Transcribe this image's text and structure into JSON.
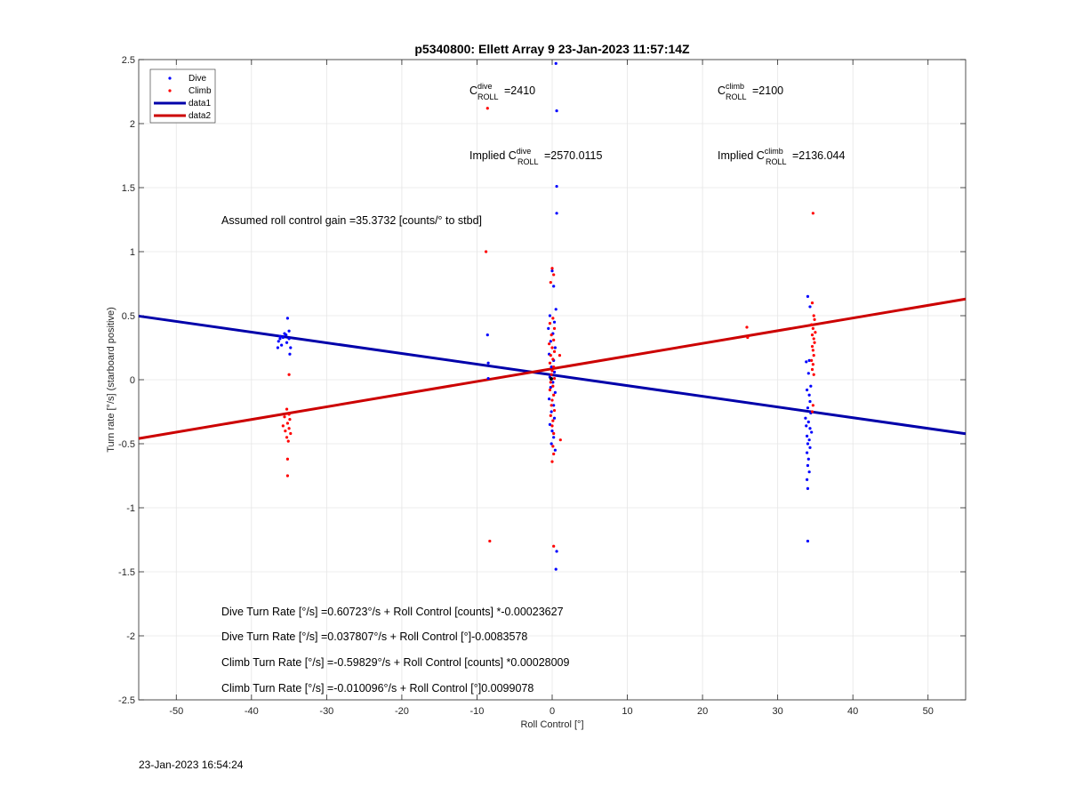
{
  "chart_data": {
    "type": "scatter",
    "title": "p5340800: Ellett Array 9 23-Jan-2023 11:57:14Z",
    "xlabel": "Roll Control [°]",
    "ylabel": "Turn rate [°/s] (starboard positive)",
    "xlim": [
      -55,
      55
    ],
    "ylim": [
      -2.5,
      2.5
    ],
    "xticks": [
      "-50",
      "-40",
      "-30",
      "-20",
      "-10",
      "0",
      "10",
      "20",
      "30",
      "40",
      "50"
    ],
    "yticks": [
      "-2.5",
      "-2",
      "-1.5",
      "-1",
      "-0.5",
      "0",
      "0.5",
      "1",
      "1.5",
      "2",
      "2.5"
    ],
    "grid": true,
    "legend_position": "top-left",
    "legend": [
      "Dive",
      "Climb",
      "data1",
      "data2"
    ],
    "colors": {
      "dive": "#0000ff",
      "climb": "#ff0000",
      "data1": "#0000aa",
      "data2": "#cc0000"
    },
    "series": [
      {
        "name": "Dive",
        "points": [
          [
            -35.2,
            0.48
          ],
          [
            -35.0,
            0.38
          ],
          [
            -35.4,
            0.35
          ],
          [
            -35.8,
            0.33
          ],
          [
            -36.2,
            0.32
          ],
          [
            -36.4,
            0.3
          ],
          [
            -35.6,
            0.36
          ],
          [
            -35.0,
            0.32
          ],
          [
            -36.0,
            0.27
          ],
          [
            -34.8,
            0.25
          ],
          [
            -36.5,
            0.25
          ],
          [
            -34.9,
            0.2
          ],
          [
            -36.2,
            0.34
          ],
          [
            -35.3,
            0.29
          ],
          [
            -8.6,
            0.35
          ],
          [
            -8.5,
            0.13
          ],
          [
            -8.5,
            0.01
          ],
          [
            0.5,
            2.47
          ],
          [
            0.6,
            2.1
          ],
          [
            0.6,
            1.51
          ],
          [
            0.6,
            1.3
          ],
          [
            0.0,
            0.85
          ],
          [
            0.2,
            0.73
          ],
          [
            0.5,
            0.55
          ],
          [
            -0.3,
            0.5
          ],
          [
            0.3,
            0.45
          ],
          [
            -0.5,
            0.4
          ],
          [
            0.1,
            0.36
          ],
          [
            -0.2,
            0.3
          ],
          [
            0.4,
            0.25
          ],
          [
            -0.4,
            0.2
          ],
          [
            0.2,
            0.15
          ],
          [
            -0.1,
            0.1
          ],
          [
            0.3,
            0.06
          ],
          [
            -0.3,
            0.02
          ],
          [
            0.1,
            -0.02
          ],
          [
            -0.2,
            -0.06
          ],
          [
            0.4,
            -0.1
          ],
          [
            -0.4,
            -0.15
          ],
          [
            0.2,
            -0.2
          ],
          [
            -0.1,
            -0.25
          ],
          [
            0.3,
            -0.3
          ],
          [
            -0.3,
            -0.35
          ],
          [
            0.0,
            -0.4
          ],
          [
            0.2,
            -0.45
          ],
          [
            -0.1,
            -0.5
          ],
          [
            0.4,
            -0.55
          ],
          [
            0.6,
            -1.34
          ],
          [
            0.5,
            -1.48
          ],
          [
            34.0,
            0.65
          ],
          [
            34.3,
            0.57
          ],
          [
            34.2,
            0.15
          ],
          [
            33.8,
            0.14
          ],
          [
            34.1,
            0.05
          ],
          [
            34.4,
            -0.05
          ],
          [
            33.9,
            -0.08
          ],
          [
            34.2,
            -0.12
          ],
          [
            34.3,
            -0.17
          ],
          [
            34.0,
            -0.22
          ],
          [
            34.4,
            -0.26
          ],
          [
            33.7,
            -0.3
          ],
          [
            34.1,
            -0.33
          ],
          [
            33.8,
            -0.36
          ],
          [
            34.3,
            -0.38
          ],
          [
            34.5,
            -0.41
          ],
          [
            33.9,
            -0.44
          ],
          [
            34.2,
            -0.47
          ],
          [
            34.0,
            -0.5
          ],
          [
            34.3,
            -0.53
          ],
          [
            33.9,
            -0.57
          ],
          [
            34.1,
            -0.62
          ],
          [
            34.0,
            -0.67
          ],
          [
            34.2,
            -0.72
          ],
          [
            33.9,
            -0.78
          ],
          [
            34.0,
            -0.85
          ],
          [
            34.0,
            -1.26
          ]
        ]
      },
      {
        "name": "Climb",
        "points": [
          [
            -35.0,
            0.04
          ],
          [
            -35.3,
            -0.23
          ],
          [
            -35.0,
            -0.27
          ],
          [
            -35.6,
            -0.29
          ],
          [
            -34.9,
            -0.31
          ],
          [
            -35.2,
            -0.34
          ],
          [
            -35.8,
            -0.36
          ],
          [
            -35.0,
            -0.38
          ],
          [
            -35.5,
            -0.4
          ],
          [
            -34.8,
            -0.42
          ],
          [
            -35.3,
            -0.45
          ],
          [
            -35.1,
            -0.48
          ],
          [
            -35.2,
            -0.62
          ],
          [
            -35.2,
            -0.75
          ],
          [
            -8.6,
            2.12
          ],
          [
            -8.8,
            1.0
          ],
          [
            -8.3,
            -1.26
          ],
          [
            0.0,
            0.87
          ],
          [
            0.2,
            0.82
          ],
          [
            -0.2,
            0.76
          ],
          [
            0.1,
            0.48
          ],
          [
            -0.3,
            0.44
          ],
          [
            0.3,
            0.4
          ],
          [
            -0.1,
            0.35
          ],
          [
            0.2,
            0.31
          ],
          [
            -0.4,
            0.28
          ],
          [
            0.0,
            0.25
          ],
          [
            0.3,
            0.22
          ],
          [
            -0.2,
            0.19
          ],
          [
            0.1,
            0.16
          ],
          [
            -0.3,
            0.13
          ],
          [
            0.2,
            0.1
          ],
          [
            0.0,
            0.07
          ],
          [
            -0.1,
            0.04
          ],
          [
            0.3,
            0.01
          ],
          [
            -0.2,
            -0.02
          ],
          [
            0.1,
            -0.05
          ],
          [
            -0.3,
            -0.08
          ],
          [
            0.2,
            -0.12
          ],
          [
            0.0,
            -0.16
          ],
          [
            -0.1,
            -0.2
          ],
          [
            0.3,
            -0.24
          ],
          [
            -0.2,
            -0.28
          ],
          [
            0.1,
            -0.32
          ],
          [
            0.0,
            -0.36
          ],
          [
            0.2,
            -0.42
          ],
          [
            0.1,
            -0.52
          ],
          [
            0.2,
            -0.58
          ],
          [
            0.0,
            -0.64
          ],
          [
            1.0,
            0.19
          ],
          [
            1.1,
            -0.47
          ],
          [
            0.2,
            -1.3
          ],
          [
            25.9,
            0.41
          ],
          [
            26.0,
            0.33
          ],
          [
            34.7,
            1.3
          ],
          [
            34.6,
            0.6
          ],
          [
            34.8,
            0.5
          ],
          [
            34.9,
            0.47
          ],
          [
            34.5,
            0.43
          ],
          [
            34.7,
            0.4
          ],
          [
            35.0,
            0.37
          ],
          [
            34.6,
            0.35
          ],
          [
            34.8,
            0.32
          ],
          [
            34.9,
            0.29
          ],
          [
            34.6,
            0.26
          ],
          [
            34.7,
            0.23
          ],
          [
            34.8,
            0.19
          ],
          [
            34.5,
            0.15
          ],
          [
            34.7,
            0.12
          ],
          [
            34.6,
            0.08
          ],
          [
            34.8,
            0.04
          ],
          [
            34.7,
            -0.2
          ],
          [
            34.6,
            -0.25
          ]
        ]
      },
      {
        "name": "data1",
        "line": [
          [
            -55,
            0.497
          ],
          [
            55,
            -0.422
          ]
        ]
      },
      {
        "name": "data2",
        "line": [
          [
            -55,
            -0.459
          ],
          [
            55,
            0.63
          ]
        ]
      }
    ],
    "annotations": {
      "c_dive_base": "C",
      "c_dive_sup": "dive",
      "c_dive_sub": "ROLL",
      "c_dive_val": "=2410",
      "c_climb_base": "C",
      "c_climb_sup": "climb",
      "c_climb_sub": "ROLL",
      "c_climb_val": "=2100",
      "implied_dive_pre": "Implied C",
      "implied_dive_sup": "dive",
      "implied_dive_sub": "ROLL",
      "implied_dive_val": "=2570.0115",
      "implied_climb_pre": "Implied C",
      "implied_climb_sup": "climb",
      "implied_climb_sub": "ROLL",
      "implied_climb_val": "=2136.044",
      "gain": "Assumed roll control gain =35.3732 [counts/° to stbd]",
      "eq1": "Dive Turn Rate [°/s] =0.60723°/s + Roll Control [counts] *-0.00023627",
      "eq2": "Dive Turn Rate [°/s] =0.037807°/s + Roll Control [°]-0.0083578",
      "eq3": "Climb Turn Rate [°/s] =-0.59829°/s + Roll Control [counts] *0.00028009",
      "eq4": "Climb Turn Rate [°/s] =-0.010096°/s + Roll Control [°]0.0099078"
    },
    "timestamp": "23-Jan-2023 16:54:24"
  }
}
